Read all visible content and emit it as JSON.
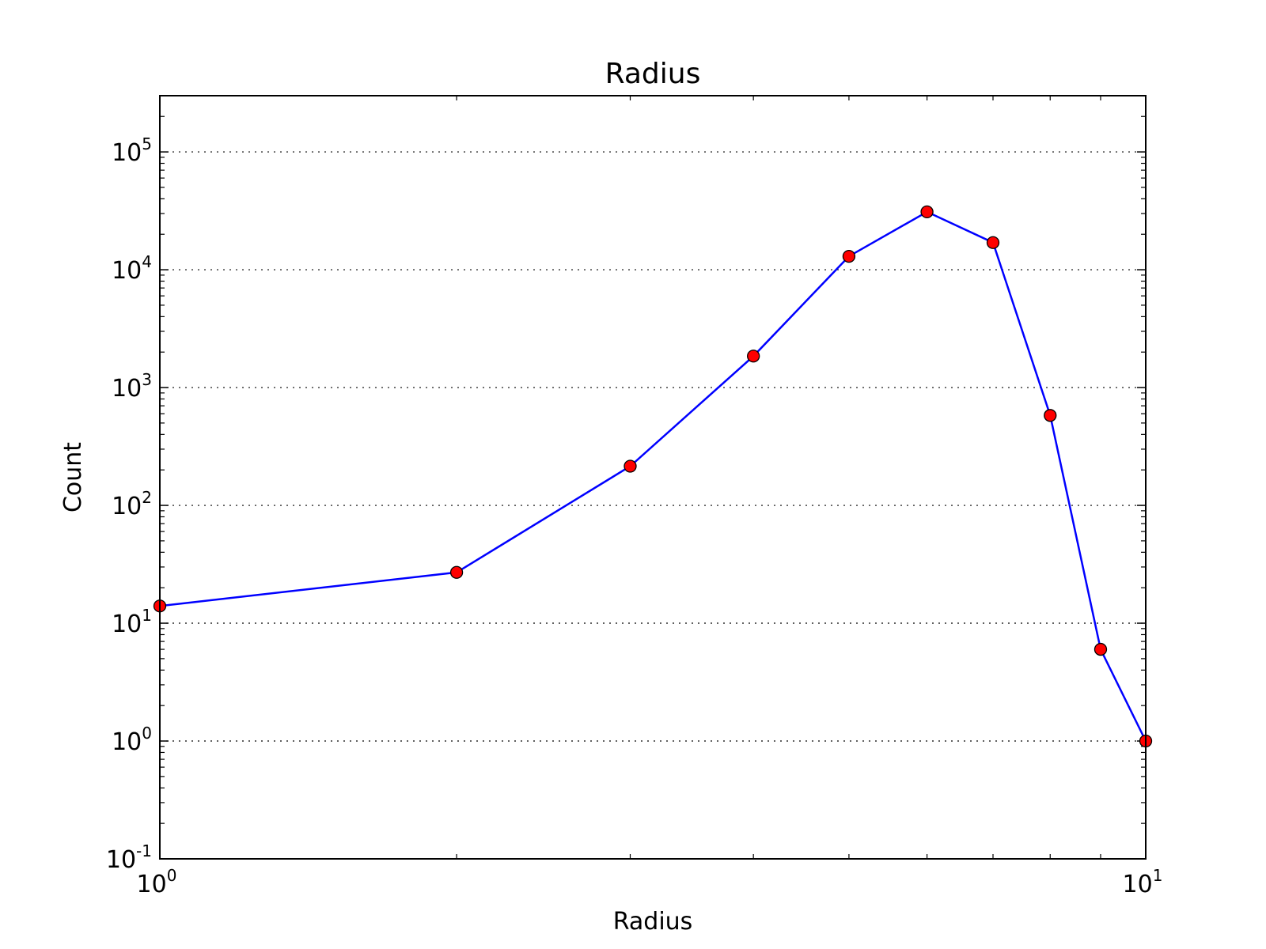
{
  "chart_data": {
    "type": "line",
    "title": "Radius",
    "xlabel": "Radius",
    "ylabel": "Count",
    "xscale": "log",
    "yscale": "log",
    "xlim": [
      1,
      10
    ],
    "ylim": [
      0.1,
      300000
    ],
    "grid": "horizontal dotted at y major ticks",
    "line_color": "#0000ff",
    "marker_color": "#ff0000",
    "marker_edge_color": "#000000",
    "x_ticks": [
      {
        "value": 1,
        "base": "10",
        "exp": "0"
      },
      {
        "value": 10,
        "base": "10",
        "exp": "1"
      }
    ],
    "y_ticks": [
      {
        "value": 0.1,
        "base": "10",
        "exp": "-1"
      },
      {
        "value": 1,
        "base": "10",
        "exp": "0"
      },
      {
        "value": 10,
        "base": "10",
        "exp": "1"
      },
      {
        "value": 100,
        "base": "10",
        "exp": "2"
      },
      {
        "value": 1000,
        "base": "10",
        "exp": "3"
      },
      {
        "value": 10000,
        "base": "10",
        "exp": "4"
      },
      {
        "value": 100000,
        "base": "10",
        "exp": "5"
      }
    ],
    "series": [
      {
        "x": [
          1,
          2,
          3,
          4,
          5,
          6,
          7,
          8,
          9,
          10
        ],
        "y": [
          14,
          27,
          215,
          1850,
          13000,
          31000,
          17000,
          580,
          6,
          1
        ]
      }
    ]
  }
}
